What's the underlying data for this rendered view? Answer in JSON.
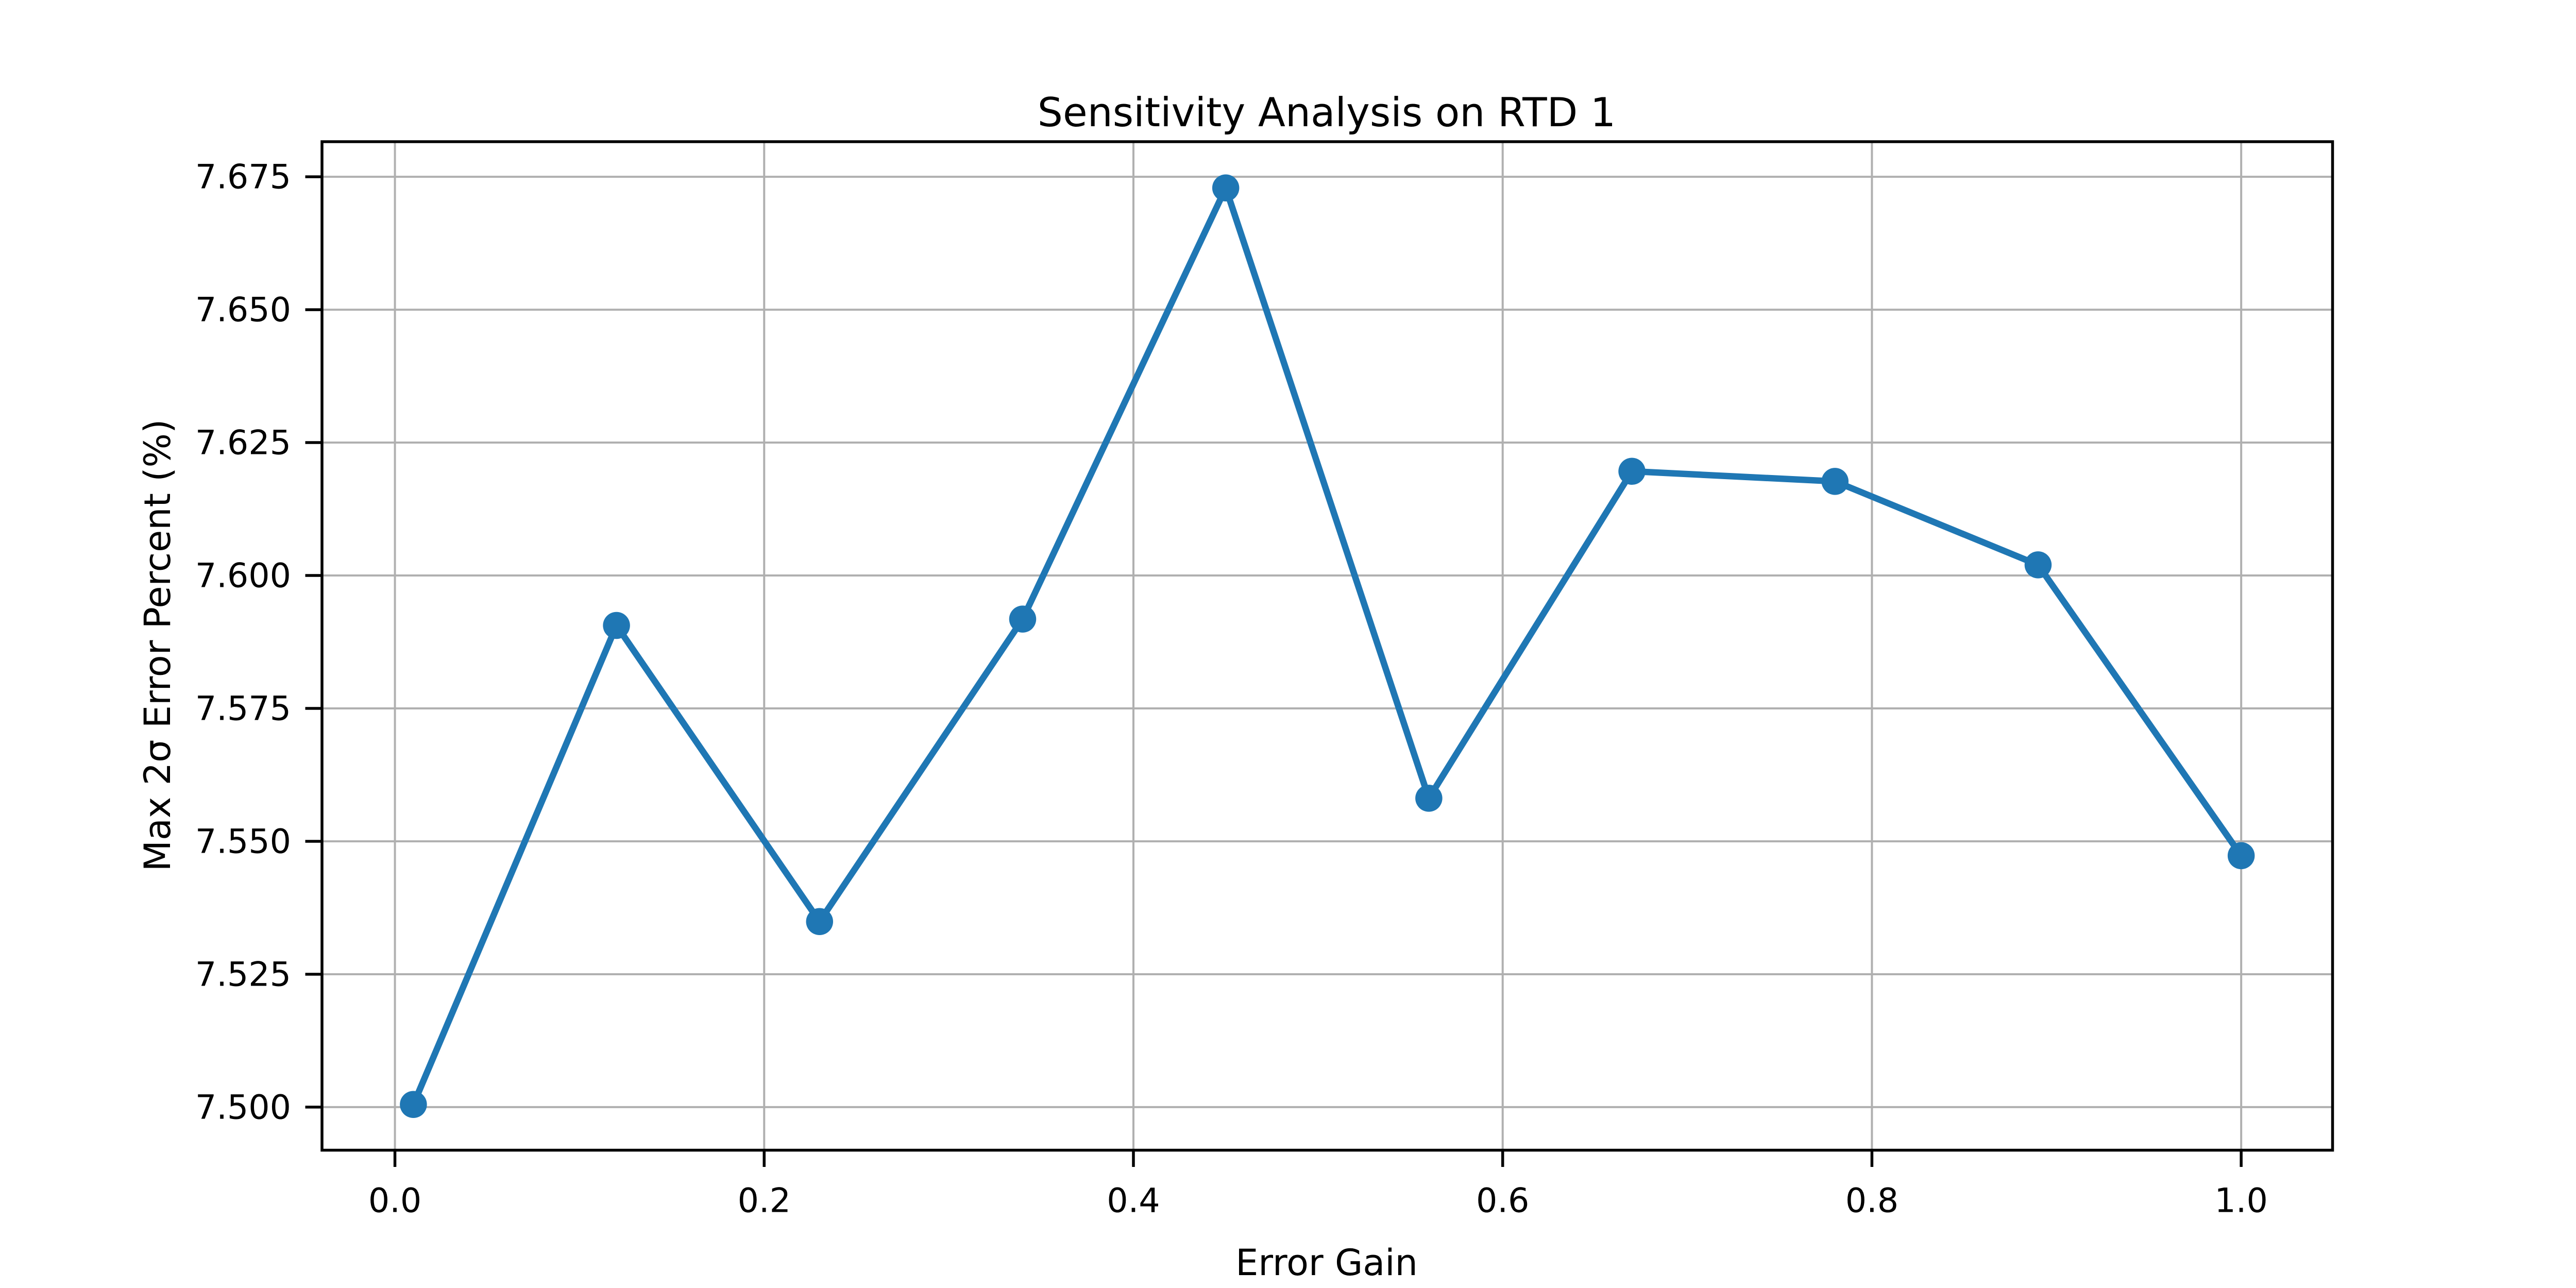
{
  "figure": {
    "background_color": "#ffffff"
  },
  "chart_data": {
    "type": "line",
    "title": "Sensitivity Analysis on RTD 1",
    "xlabel": "Error Gain",
    "ylabel": "Max 2σ Error Percent (%)",
    "x": [
      0.01,
      0.12,
      0.23,
      0.34,
      0.45,
      0.56,
      0.67,
      0.78,
      0.89,
      1.0
    ],
    "y": [
      7.5005,
      7.5906,
      7.5349,
      7.5918,
      7.6729,
      7.5581,
      7.6196,
      7.6177,
      7.602,
      7.5473
    ],
    "xtick_values": [
      0.0,
      0.2,
      0.4,
      0.6,
      0.8,
      1.0
    ],
    "xtick_labels": [
      "0.0",
      "0.2",
      "0.4",
      "0.6",
      "0.8",
      "1.0"
    ],
    "ytick_values": [
      7.5,
      7.525,
      7.55,
      7.575,
      7.6,
      7.625,
      7.65,
      7.675
    ],
    "ytick_labels": [
      "7.500",
      "7.525",
      "7.550",
      "7.575",
      "7.600",
      "7.625",
      "7.650",
      "7.675"
    ],
    "xlim": [
      -0.0395,
      1.0495
    ],
    "ylim": [
      7.4919,
      7.6816
    ],
    "grid": true,
    "legend_position": "none",
    "line_color": "#1f77b4",
    "marker": "o",
    "grid_color": "#b0b0b0",
    "spine_color": "#000000",
    "text_color": "#000000"
  }
}
